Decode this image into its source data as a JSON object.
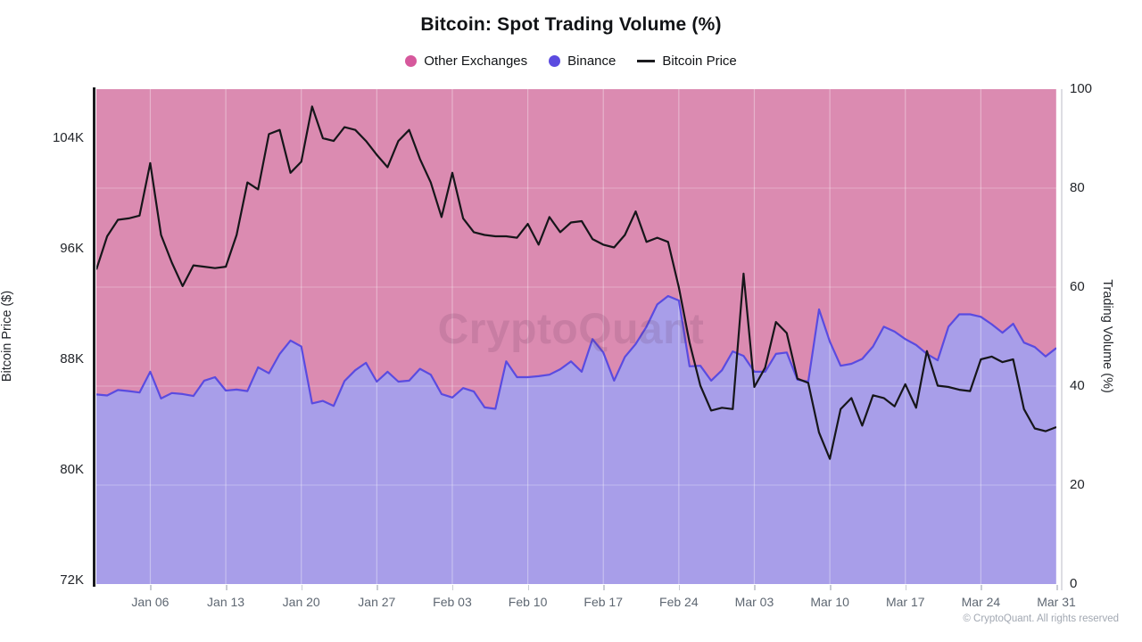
{
  "header": {
    "title": "Bitcoin: Spot Trading Volume (%)"
  },
  "legend": {
    "items": [
      {
        "label": "Other Exchanges",
        "swatch": "dot",
        "color": "#d6589c"
      },
      {
        "label": "Binance",
        "swatch": "dot",
        "color": "#5b4be0"
      },
      {
        "label": "Bitcoin Price",
        "swatch": "line",
        "color": "#1b1b1f"
      }
    ]
  },
  "watermark": {
    "text": "CryptoQuant"
  },
  "footer": {
    "copyright": "© CryptoQuant. All rights reserved"
  },
  "chart_data": {
    "type": "area",
    "subtype": "100pct-stacked-area-with-line-overlay",
    "title": "Bitcoin: Spot Trading Volume (%)",
    "x_start": "Jan 01",
    "x_end": "Mar 31",
    "x_step_days": 1,
    "x_axis": {
      "tick_labels": [
        "Jan 06",
        "Jan 13",
        "Jan 20",
        "Jan 27",
        "Feb 03",
        "Feb 10",
        "Feb 17",
        "Feb 24",
        "Mar 03",
        "Mar 10",
        "Mar 17",
        "Mar 24",
        "Mar 31"
      ],
      "tick_day_indices": [
        5,
        12,
        19,
        26,
        33,
        40,
        47,
        54,
        61,
        68,
        75,
        82,
        89
      ]
    },
    "left_axis": {
      "label": "Bitcoin Price ($)",
      "tick_labels": [
        "104K",
        "96K",
        "88K",
        "80K",
        "72K"
      ],
      "tick_values_k": [
        104,
        96,
        88,
        80,
        72
      ],
      "applies_to": "Bitcoin Price"
    },
    "right_axis": {
      "label": "Trading Volume (%)",
      "tick_labels": [
        "100",
        "80",
        "60",
        "40",
        "20",
        "0"
      ],
      "tick_values": [
        100,
        80,
        60,
        40,
        20,
        0
      ],
      "range": [
        0,
        100
      ],
      "applies_to": "stacked volume shares"
    },
    "grid": "faint white horizontal and weekly vertical lines over the area fills",
    "legend_position": "top-center",
    "series": [
      {
        "name": "Binance",
        "type": "area",
        "axis": "right",
        "unit": "%",
        "fill_color": "#a89ee9",
        "edge_color": "#5a4be0",
        "values": [
          38.3,
          38.1,
          39.2,
          39.0,
          38.7,
          42.9,
          37.5,
          38.6,
          38.4,
          38.0,
          41.1,
          41.8,
          39.1,
          39.3,
          39.0,
          43.8,
          42.6,
          46.5,
          49.2,
          48.0,
          36.5,
          37.0,
          36.0,
          41.0,
          43.2,
          44.7,
          40.9,
          42.9,
          40.9,
          41.1,
          43.5,
          42.3,
          38.4,
          37.7,
          39.6,
          38.9,
          35.7,
          35.4,
          45.0,
          41.8,
          41.8,
          42.0,
          42.3,
          43.4,
          45.0,
          42.9,
          49.5,
          46.8,
          41.1,
          45.9,
          48.5,
          52.0,
          56.5,
          58.2,
          57.3,
          44.0,
          44.1,
          41.1,
          43.2,
          47.0,
          46.1,
          42.9,
          42.9,
          46.5,
          46.8,
          41.3,
          40.9,
          55.5,
          49.0,
          44.1,
          44.5,
          45.5,
          48.0,
          52.0,
          51.0,
          49.5,
          48.3,
          46.5,
          45.2,
          52.0,
          54.5,
          54.5,
          54.0,
          52.5,
          50.8,
          52.6,
          48.8,
          47.9,
          46.0,
          47.7
        ]
      },
      {
        "name": "Other Exchanges",
        "type": "area",
        "axis": "right",
        "unit": "%",
        "fill_color": "#db8bb1",
        "values_note": "100 minus Binance share (chart is stacked to 100%), fills from Binance boundary up to 100"
      },
      {
        "name": "Bitcoin Price",
        "type": "line",
        "axis": "left",
        "unit": "K USD",
        "line_color": "#16161a",
        "values_k": [
          94.5,
          96.9,
          98.1,
          98.2,
          98.4,
          102.2,
          97.0,
          95.0,
          93.3,
          94.8,
          94.7,
          94.6,
          94.7,
          97.0,
          100.8,
          100.3,
          104.3,
          104.6,
          101.5,
          102.3,
          106.3,
          104.0,
          103.8,
          104.8,
          104.6,
          103.8,
          102.8,
          101.9,
          103.8,
          104.6,
          102.5,
          100.8,
          98.3,
          101.5,
          98.2,
          97.2,
          97.0,
          96.9,
          96.9,
          96.8,
          97.8,
          96.3,
          98.3,
          97.2,
          97.9,
          98.0,
          96.7,
          96.3,
          96.1,
          97.0,
          98.7,
          96.5,
          96.8,
          96.5,
          93.2,
          89.2,
          86.1,
          84.3,
          84.5,
          84.4,
          94.2,
          86.0,
          87.4,
          90.7,
          89.9,
          86.6,
          86.3,
          82.7,
          80.8,
          84.4,
          85.2,
          83.2,
          85.4,
          85.2,
          84.6,
          86.2,
          84.5,
          88.6,
          86.1,
          86.0,
          85.8,
          85.7,
          88.0,
          88.2,
          87.8,
          88.0,
          84.4,
          83.0,
          82.8,
          83.1
        ]
      }
    ]
  }
}
